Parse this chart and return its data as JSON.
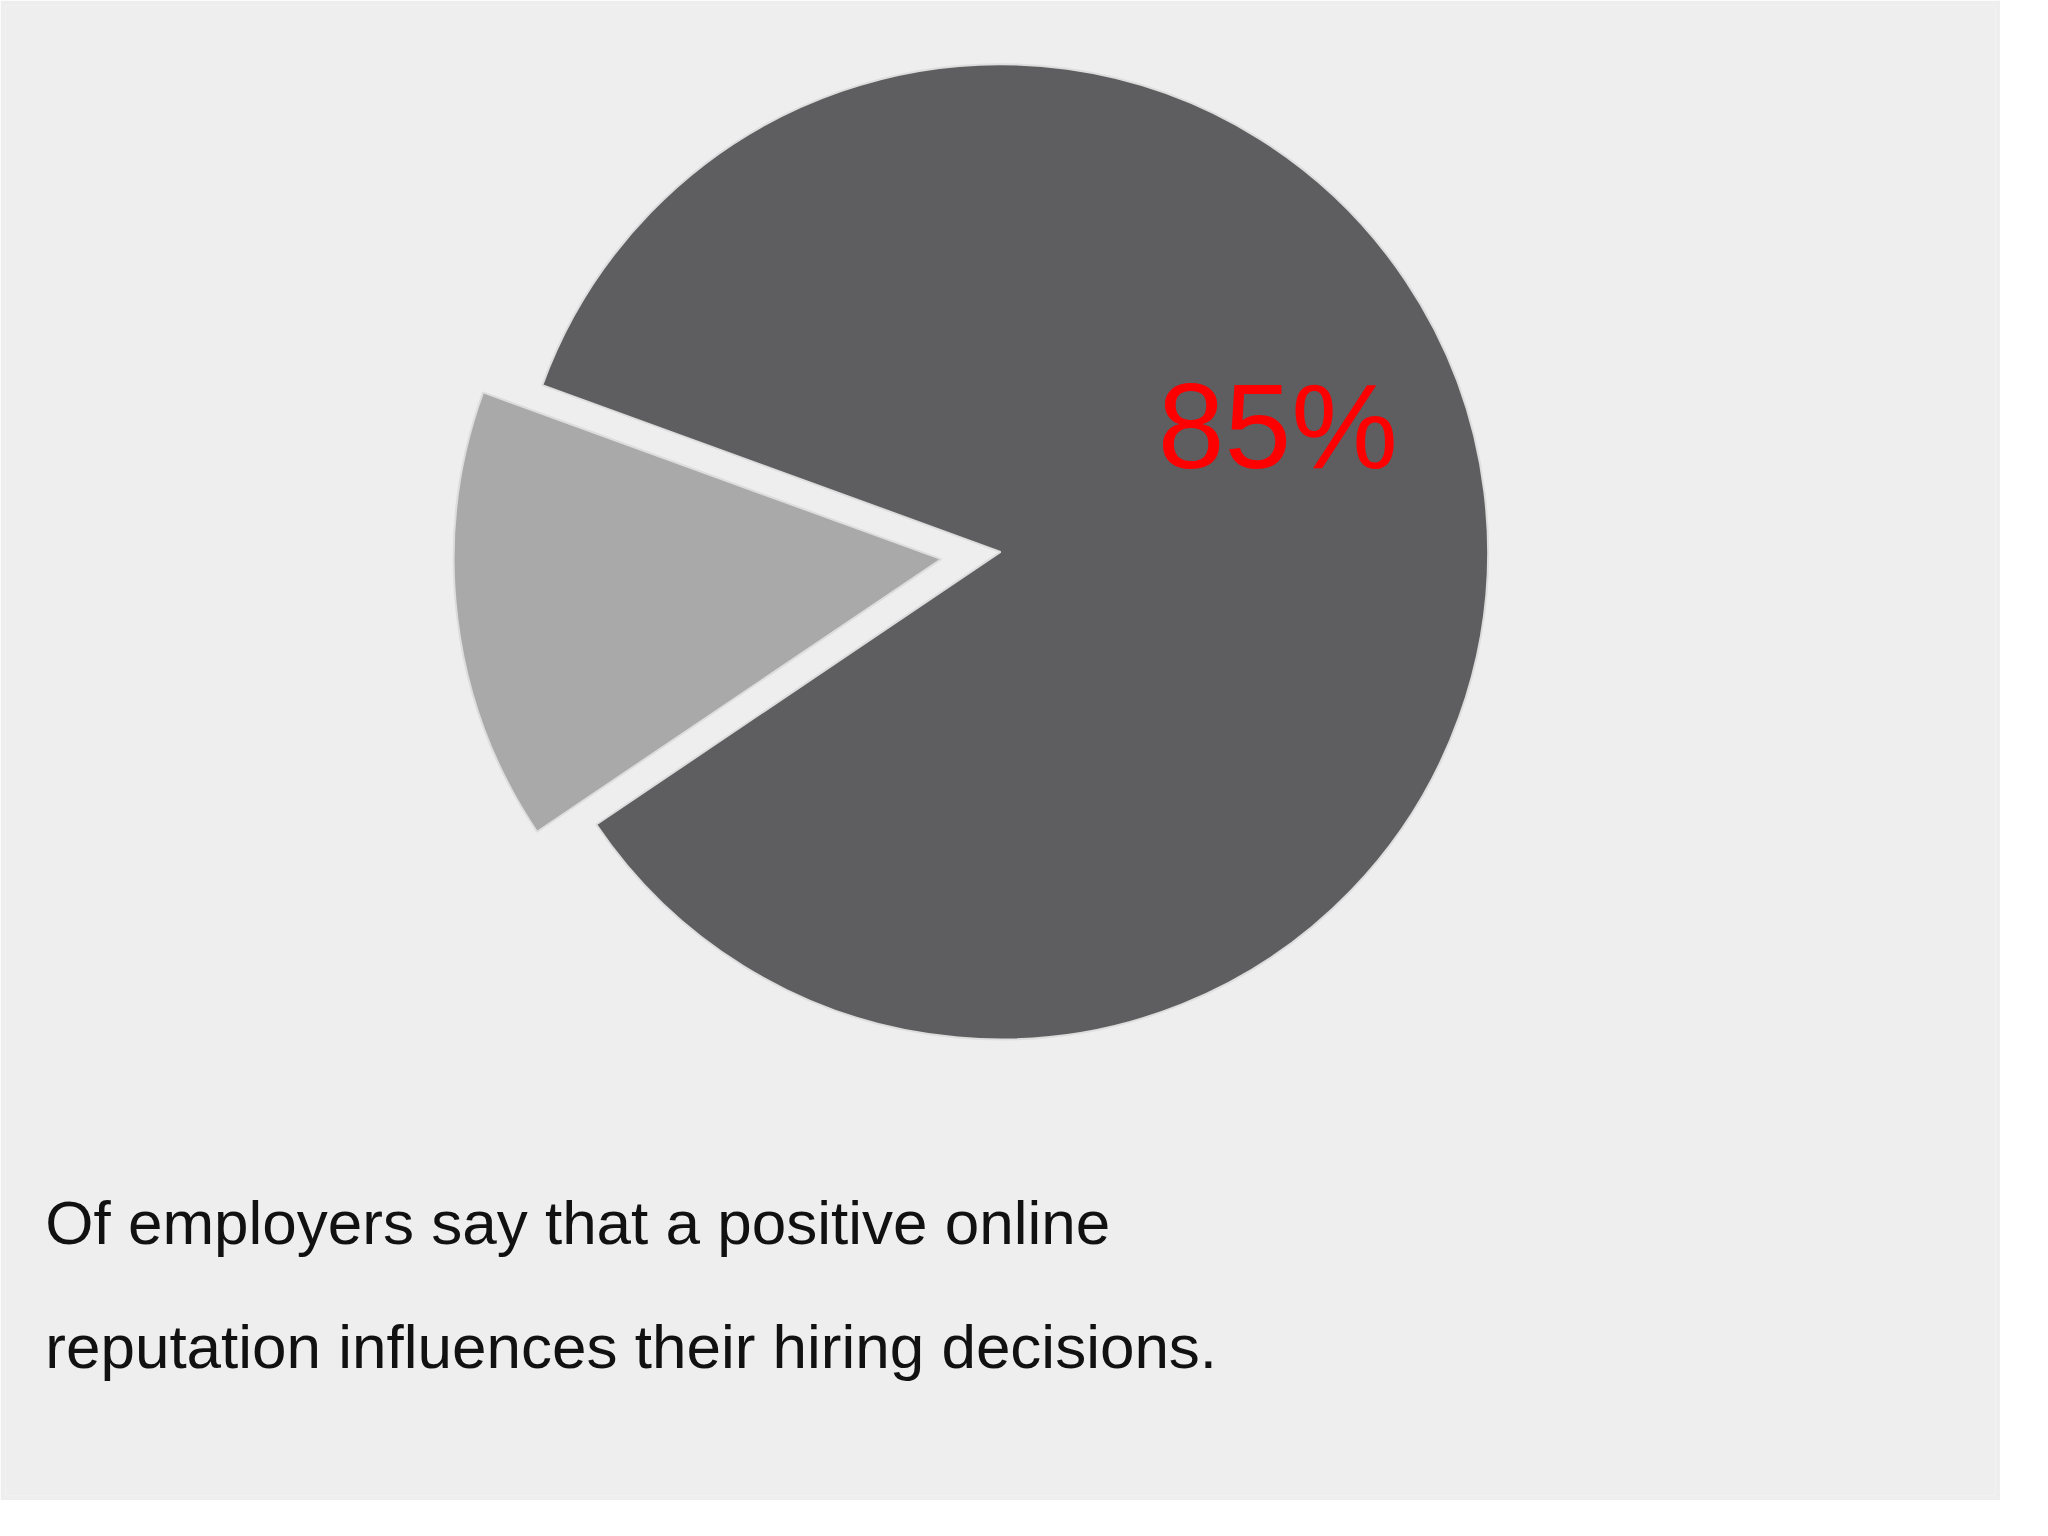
{
  "chart_data": {
    "type": "pie",
    "categories": [
      null,
      null
    ],
    "values": [
      85,
      15
    ],
    "colors": [
      "#5e5d5f",
      "#a9a9a9"
    ],
    "value_labels": [
      "85%",
      null
    ],
    "annotations": [
      "Of employers say that a positive online reputation influences their hiring decisions."
    ]
  }
}
